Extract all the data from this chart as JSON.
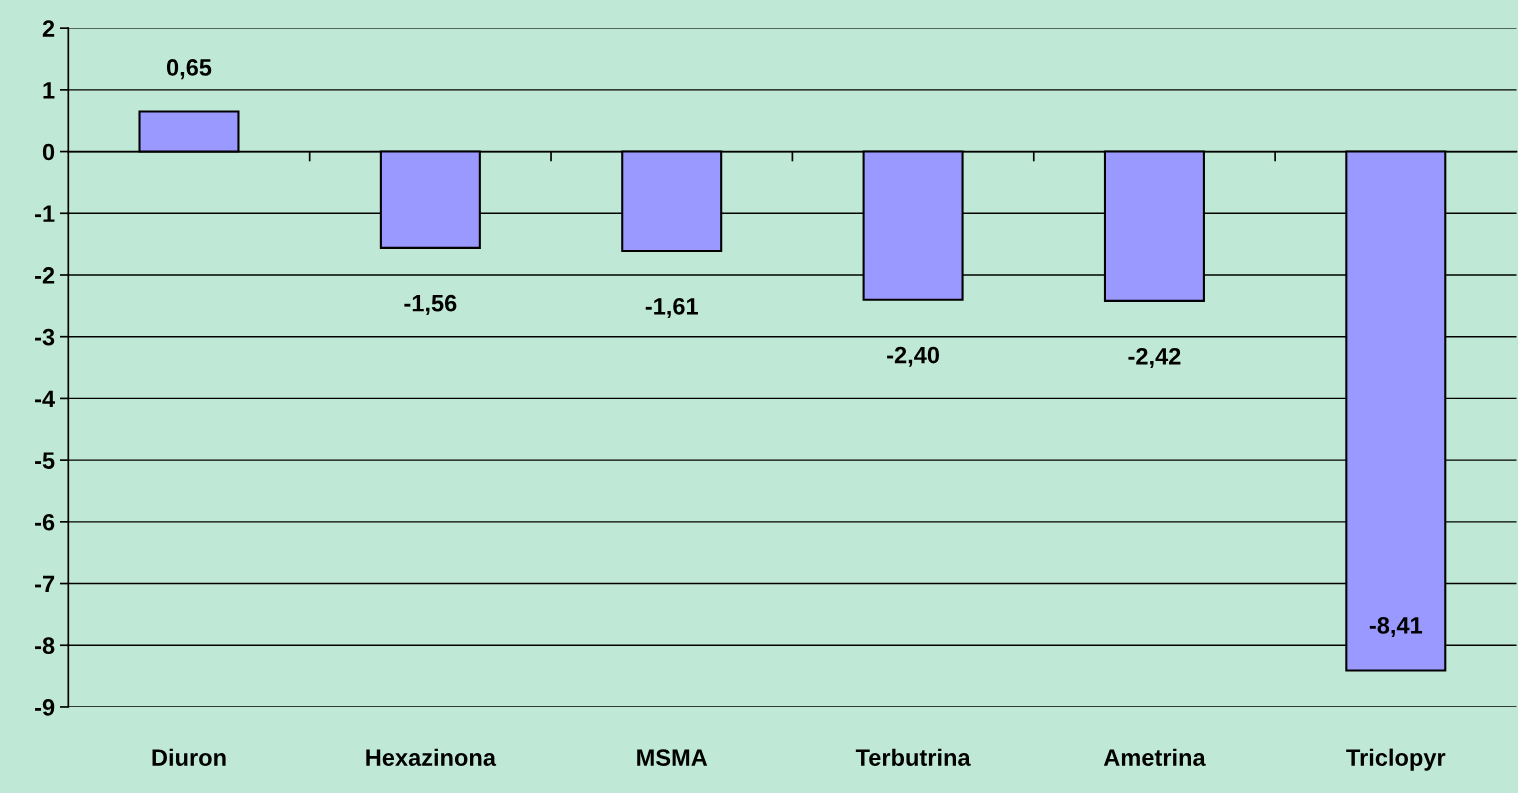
{
  "chart_data": {
    "type": "bar",
    "categories": [
      "Diuron",
      "Hexazinona",
      "MSMA",
      "Terbutrina",
      "Ametrina",
      "Triclopyr"
    ],
    "values": [
      0.65,
      -1.56,
      -1.61,
      -2.4,
      -2.42,
      -8.41
    ],
    "value_labels": [
      "0,65",
      "-1,56",
      "-1,61",
      "-2,40",
      "-2,42",
      "-8,41"
    ],
    "color": "#9999ff",
    "ylim": [
      -9,
      2
    ],
    "yticks": [
      -9,
      -8,
      -7,
      -6,
      -5,
      -4,
      -3,
      -2,
      -1,
      0,
      1,
      2
    ],
    "grid": "y",
    "legend": false
  }
}
